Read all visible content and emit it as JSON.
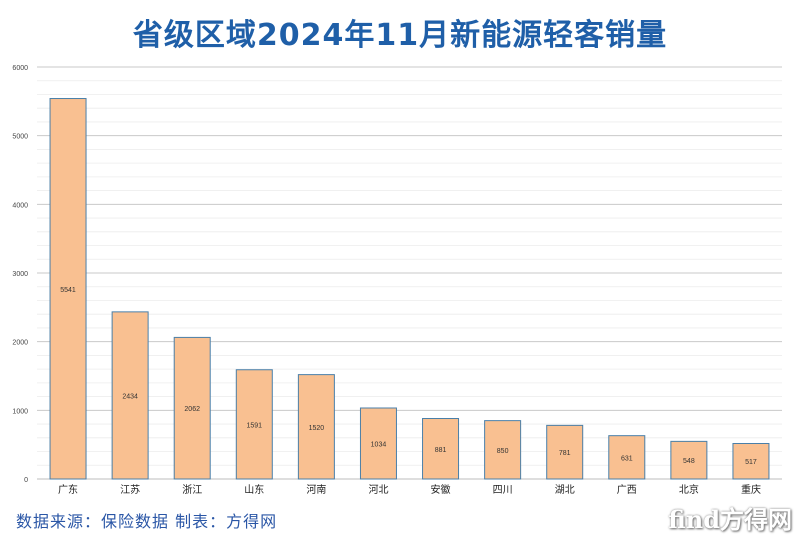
{
  "chart_data": {
    "type": "bar",
    "title": "省级区域2024年11月新能源轻客销量",
    "categories": [
      "广东",
      "江苏",
      "浙江",
      "山东",
      "河南",
      "河北",
      "安徽",
      "四川",
      "湖北",
      "广西",
      "北京",
      "重庆"
    ],
    "values": [
      5541,
      2434,
      2062,
      1591,
      1520,
      1034,
      881,
      850,
      781,
      631,
      548,
      517
    ],
    "ylim": [
      0,
      6000
    ],
    "yticks": [
      0,
      1000,
      2000,
      3000,
      4000,
      5000,
      6000
    ],
    "grid": true,
    "bar_color": "#f9c091",
    "bar_edge_color": "#4a7fa8"
  },
  "footer": {
    "source": "数据来源：保险数据 制表：方得网"
  },
  "watermark": {
    "text": "find方得网"
  },
  "colors": {
    "title": "#1f5fa8"
  }
}
